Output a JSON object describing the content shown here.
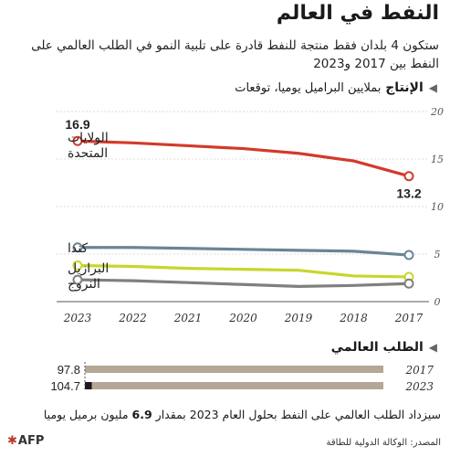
{
  "title": "النفط في العالم",
  "subtitle": "ستكون 4 بلدان فقط منتجة للنفط قادرة على تلبية النمو في الطلب العالمي على النفط بين 2017 و2023",
  "production_section": {
    "heading": "الإنتاج",
    "subheading": "بملايين البراميل يوميا، توقعات"
  },
  "demand_section": {
    "heading": "الطلب العالمي"
  },
  "note": {
    "before": "سيزداد الطلب العالمي على النفط بحلول العام 2023 بمقدار ",
    "bold": "6.9",
    "after": " مليون برميل يوميا"
  },
  "source": "المصدر: الوكالة الدولية للطاقة",
  "brand": "AFP",
  "colors": {
    "us": "#d23a2b",
    "canada": "#6a8595",
    "brazil": "#c8d62c",
    "norway": "#7f7f7f",
    "demand_bar": "#b5a795",
    "demand_marker": "#1a1a1a"
  },
  "chart_data": [
    {
      "type": "line",
      "x": [
        2017,
        2018,
        2019,
        2020,
        2021,
        2022,
        2023
      ],
      "x_direction": "right-to-left",
      "ylim": [
        0,
        20
      ],
      "yticks": [
        0,
        5,
        10,
        15,
        20
      ],
      "grid": true,
      "series": [
        {
          "name": "الولايات المتحدة",
          "values": [
            13.2,
            14.8,
            15.6,
            16.1,
            16.4,
            16.7,
            16.9
          ],
          "labels": {
            "2017": "13.2",
            "2023": "16.9"
          }
        },
        {
          "name": "كندا",
          "values": [
            4.9,
            5.3,
            5.4,
            5.5,
            5.6,
            5.7,
            5.7
          ]
        },
        {
          "name": "البرازيل",
          "values": [
            2.6,
            2.7,
            3.3,
            3.4,
            3.5,
            3.7,
            3.8
          ]
        },
        {
          "name": "النروج",
          "values": [
            1.9,
            1.7,
            1.6,
            1.8,
            2.0,
            2.2,
            2.3
          ]
        }
      ]
    },
    {
      "type": "bar",
      "orientation": "horizontal",
      "categories": [
        "2017",
        "2023"
      ],
      "values": [
        97.8,
        104.7
      ]
    }
  ]
}
